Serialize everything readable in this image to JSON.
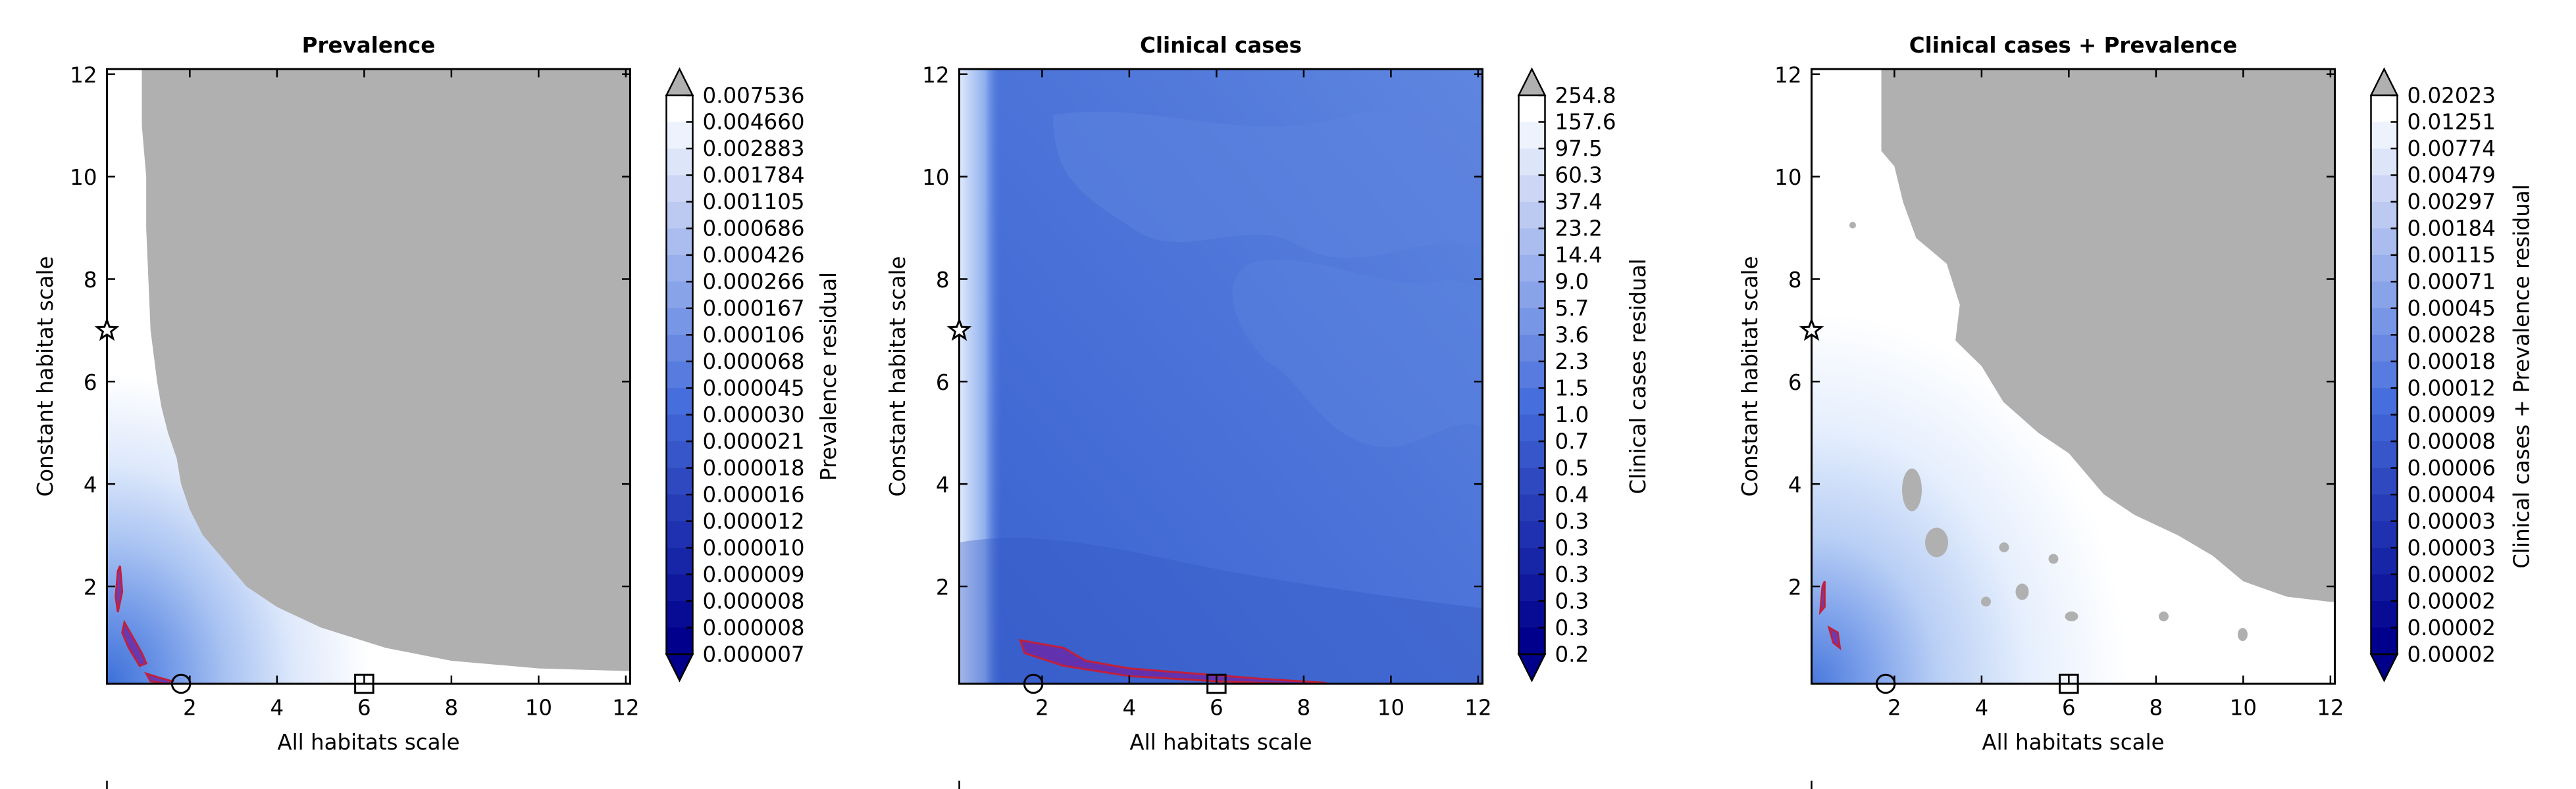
{
  "chart_data": [
    {
      "type": "heatmap",
      "title": "Prevalence",
      "xlabel": "All habitats scale",
      "ylabel": "Constant habitat scale",
      "xlim": [
        0.1,
        12.1
      ],
      "ylim": [
        0.1,
        12.1
      ],
      "xticks": [
        "2",
        "4",
        "6",
        "8",
        "10",
        "12"
      ],
      "yticks": [
        "2",
        "4",
        "6",
        "8",
        "10",
        "12"
      ],
      "colorbar_label": "Prevalence residual",
      "colorbar_levels": [
        "0.007536",
        "0.004660",
        "0.002883",
        "0.001784",
        "0.001105",
        "0.000686",
        "0.000426",
        "0.000266",
        "0.000167",
        "0.000106",
        "0.000068",
        "0.000045",
        "0.000030",
        "0.000021",
        "0.000018",
        "0.000016",
        "0.000012",
        "0.000010",
        "0.000009",
        "0.000008",
        "0.000008",
        "0.000007"
      ],
      "markers": [
        {
          "symbol": "star",
          "x": 0.1,
          "y": 7.0
        },
        {
          "symbol": "circle",
          "x": 1.8,
          "y": 0.1
        },
        {
          "symbol": "square",
          "x": 6.0,
          "y": 0.1
        }
      ],
      "grey_boundary": [
        [
          0.9,
          12.0
        ],
        [
          0.9,
          11.0
        ],
        [
          1.0,
          10.0
        ],
        [
          1.0,
          9.0
        ],
        [
          1.05,
          8.0
        ],
        [
          1.1,
          7.0
        ],
        [
          1.25,
          6.0
        ],
        [
          1.35,
          5.5
        ],
        [
          1.5,
          5.0
        ],
        [
          1.7,
          4.5
        ],
        [
          1.8,
          4.0
        ],
        [
          2.0,
          3.5
        ],
        [
          2.3,
          3.0
        ],
        [
          2.8,
          2.5
        ],
        [
          3.3,
          2.0
        ],
        [
          4.0,
          1.6
        ],
        [
          5.0,
          1.2
        ],
        [
          6.5,
          0.8
        ],
        [
          8.0,
          0.55
        ],
        [
          10.0,
          0.4
        ],
        [
          12.0,
          0.35
        ]
      ],
      "red_contours": [
        [
          [
            0.35,
            2.3
          ],
          [
            0.3,
            1.8
          ],
          [
            0.35,
            1.5
          ],
          [
            0.45,
            1.9
          ],
          [
            0.4,
            2.4
          ]
        ],
        [
          [
            0.5,
            1.3
          ],
          [
            0.7,
            1.0
          ],
          [
            0.9,
            0.7
          ],
          [
            1.0,
            0.5
          ],
          [
            0.85,
            0.45
          ],
          [
            0.6,
            0.8
          ],
          [
            0.45,
            1.1
          ]
        ],
        [
          [
            1.0,
            0.3
          ],
          [
            1.3,
            0.22
          ],
          [
            1.6,
            0.15
          ],
          [
            1.5,
            0.1
          ],
          [
            1.1,
            0.15
          ]
        ]
      ]
    },
    {
      "type": "heatmap",
      "title": "Clinical cases",
      "xlabel": "All habitats scale",
      "ylabel": "Constant habitat scale",
      "xlim": [
        0.1,
        12.1
      ],
      "ylim": [
        0.1,
        12.1
      ],
      "xticks": [
        "2",
        "4",
        "6",
        "8",
        "10",
        "12"
      ],
      "yticks": [
        "2",
        "4",
        "6",
        "8",
        "10",
        "12"
      ],
      "colorbar_label": "Clinical cases residual",
      "colorbar_levels": [
        "254.8",
        "157.6",
        "97.5",
        "60.3",
        "37.4",
        "23.2",
        "14.4",
        "9.0",
        "5.7",
        "3.6",
        "2.3",
        "1.5",
        "1.0",
        "0.7",
        "0.5",
        "0.4",
        "0.3",
        "0.3",
        "0.3",
        "0.3",
        "0.3",
        "0.2"
      ],
      "markers": [
        {
          "symbol": "star",
          "x": 0.1,
          "y": 7.0
        },
        {
          "symbol": "circle",
          "x": 1.8,
          "y": 0.1
        },
        {
          "symbol": "square",
          "x": 6.0,
          "y": 0.1
        }
      ],
      "red_contours": [
        [
          [
            1.5,
            0.95
          ],
          [
            2.5,
            0.8
          ],
          [
            3.0,
            0.55
          ],
          [
            4.0,
            0.4
          ],
          [
            5.5,
            0.3
          ],
          [
            7.0,
            0.2
          ],
          [
            8.5,
            0.12
          ],
          [
            8.5,
            0.08
          ],
          [
            6.0,
            0.15
          ],
          [
            4.0,
            0.25
          ],
          [
            2.5,
            0.45
          ],
          [
            1.6,
            0.7
          ]
        ]
      ]
    },
    {
      "type": "heatmap",
      "title": "Clinical cases + Prevalence",
      "xlabel": "All habitats scale",
      "ylabel": "Constant habitat scale",
      "xlim": [
        0.1,
        12.1
      ],
      "ylim": [
        0.1,
        12.1
      ],
      "xticks": [
        "2",
        "4",
        "6",
        "8",
        "10",
        "12"
      ],
      "yticks": [
        "2",
        "4",
        "6",
        "8",
        "10",
        "12"
      ],
      "colorbar_label": "Clinical cases + Prevalence residual",
      "colorbar_levels": [
        "0.02023",
        "0.01251",
        "0.00774",
        "0.00479",
        "0.00297",
        "0.00184",
        "0.00115",
        "0.00071",
        "0.00045",
        "0.00028",
        "0.00018",
        "0.00012",
        "0.00009",
        "0.00008",
        "0.00006",
        "0.00004",
        "0.00003",
        "0.00003",
        "0.00002",
        "0.00002",
        "0.00002",
        "0.00002"
      ],
      "markers": [
        {
          "symbol": "star",
          "x": 0.1,
          "y": 7.0
        },
        {
          "symbol": "circle",
          "x": 1.8,
          "y": 0.1
        },
        {
          "symbol": "square",
          "x": 6.0,
          "y": 0.1
        }
      ],
      "grey_boundary": [
        [
          1.7,
          12.0
        ],
        [
          1.7,
          10.5
        ],
        [
          2.0,
          10.2
        ],
        [
          2.2,
          9.5
        ],
        [
          2.5,
          8.8
        ],
        [
          3.2,
          8.3
        ],
        [
          3.5,
          7.5
        ],
        [
          3.4,
          6.8
        ],
        [
          4.0,
          6.3
        ],
        [
          4.5,
          5.6
        ],
        [
          5.3,
          5.0
        ],
        [
          6.0,
          4.6
        ],
        [
          6.4,
          4.2
        ],
        [
          6.8,
          3.8
        ],
        [
          7.5,
          3.4
        ],
        [
          8.5,
          3.0
        ],
        [
          9.3,
          2.6
        ],
        [
          10.0,
          2.1
        ],
        [
          11.0,
          1.8
        ],
        [
          12.0,
          1.7
        ]
      ],
      "red_contours": [
        [
          [
            0.35,
            2.0
          ],
          [
            0.3,
            1.5
          ],
          [
            0.4,
            1.6
          ],
          [
            0.4,
            2.1
          ]
        ],
        [
          [
            0.5,
            1.2
          ],
          [
            0.6,
            0.9
          ],
          [
            0.75,
            0.8
          ],
          [
            0.7,
            1.1
          ]
        ]
      ]
    }
  ]
}
